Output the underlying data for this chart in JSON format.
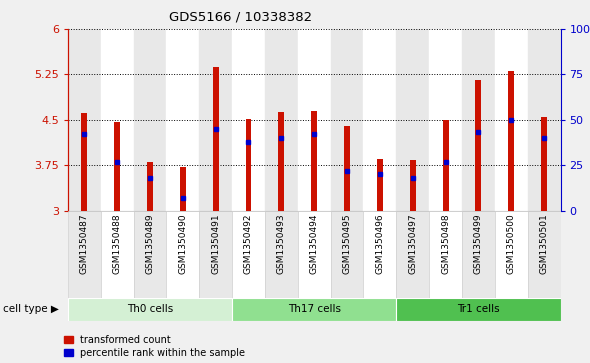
{
  "title": "GDS5166 / 10338382",
  "samples": [
    "GSM1350487",
    "GSM1350488",
    "GSM1350489",
    "GSM1350490",
    "GSM1350491",
    "GSM1350492",
    "GSM1350493",
    "GSM1350494",
    "GSM1350495",
    "GSM1350496",
    "GSM1350497",
    "GSM1350498",
    "GSM1350499",
    "GSM1350500",
    "GSM1350501"
  ],
  "bar_heights": [
    4.62,
    4.47,
    3.8,
    3.72,
    5.38,
    4.51,
    4.63,
    4.65,
    4.4,
    3.86,
    3.83,
    4.5,
    5.15,
    5.3,
    4.55
  ],
  "percentile_values": [
    0.42,
    0.27,
    0.18,
    0.07,
    0.45,
    0.38,
    0.4,
    0.42,
    0.22,
    0.2,
    0.18,
    0.27,
    0.43,
    0.5,
    0.4
  ],
  "ymin": 3.0,
  "ymax": 6.0,
  "yticks": [
    3.0,
    3.75,
    4.5,
    5.25,
    6.0
  ],
  "ytick_labels": [
    "3",
    "3.75",
    "4.5",
    "5.25",
    "6"
  ],
  "right_yticks": [
    0,
    25,
    50,
    75,
    100
  ],
  "right_ytick_labels": [
    "0",
    "25",
    "50",
    "75",
    "100%"
  ],
  "bar_color": "#cc1100",
  "percentile_color": "#0000cc",
  "cell_groups": [
    {
      "label": "Th0 cells",
      "start": 0,
      "end": 5,
      "color": "#d4f0d4"
    },
    {
      "label": "Th17 cells",
      "start": 5,
      "end": 10,
      "color": "#90e090"
    },
    {
      "label": "Tr1 cells",
      "start": 10,
      "end": 15,
      "color": "#50c050"
    }
  ],
  "legend_labels": [
    "transformed count",
    "percentile rank within the sample"
  ],
  "legend_colors": [
    "#cc1100",
    "#0000cc"
  ],
  "cell_type_label": "cell type",
  "fig_bg": "#f0f0f0",
  "plot_bg": "#ffffff",
  "col_bg_odd": "#e8e8e8",
  "col_bg_even": "#ffffff"
}
